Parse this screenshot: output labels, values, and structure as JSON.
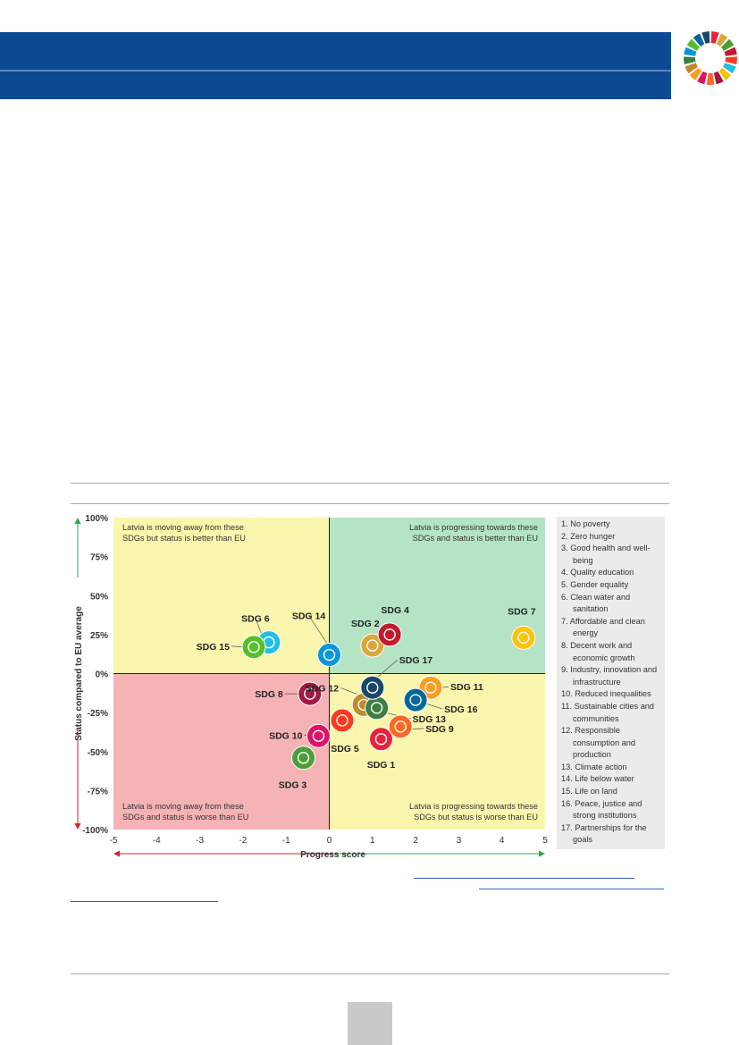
{
  "page": {
    "brand_colors": {
      "header_band": "#0b4a93",
      "rule": "#a9a9a9",
      "page_box": "#c9c9c9"
    }
  },
  "chart_data": {
    "type": "scatter",
    "xlabel": "Progress score",
    "ylabel": "Status compared to EU average",
    "xlim": [
      -5,
      5
    ],
    "ylim": [
      -100,
      100
    ],
    "xticks": [
      "-5",
      "-4",
      "-3",
      "-2",
      "-1",
      "0",
      "1",
      "2",
      "3",
      "4",
      "5"
    ],
    "yticks": [
      "100%",
      "75%",
      "50%",
      "25%",
      "0%",
      "-25%",
      "-50%",
      "-75%",
      "-100%"
    ],
    "quadrants": {
      "top_left": {
        "line1": "Latvia is moving away from these",
        "line2": "SDGs but status is better than EU",
        "color": "#fbf6ad"
      },
      "top_right": {
        "line1": "Latvia is progressing towards these",
        "line2": "SDGs and status is better than EU",
        "color": "#b5e4c5"
      },
      "bottom_left": {
        "line1": "Latvia is moving away from these",
        "line2": "SDGs and status is worse than EU",
        "color": "#f6b3b6"
      },
      "bottom_right": {
        "line1": "Latvia is progressing towards these",
        "line2": "SDGs but status is worse than EU",
        "color": "#fbf6ad"
      }
    },
    "points": [
      {
        "label": "SDG 1",
        "x": 1.2,
        "y": -42,
        "color": "#e5243b",
        "icon": "family-icon"
      },
      {
        "label": "SDG 2",
        "x": 1.0,
        "y": 18,
        "color": "#dda63a",
        "icon": "bowl-icon"
      },
      {
        "label": "SDG 3",
        "x": -0.6,
        "y": -54,
        "color": "#4c9f38",
        "icon": "heartbeat-icon"
      },
      {
        "label": "SDG 4",
        "x": 1.4,
        "y": 25,
        "color": "#c5192d",
        "icon": "book-icon"
      },
      {
        "label": "SDG 5",
        "x": 0.3,
        "y": -30,
        "color": "#ff3a21",
        "icon": "gender-icon"
      },
      {
        "label": "SDG 6",
        "x": -1.4,
        "y": 20,
        "color": "#26bde2",
        "icon": "water-glass-icon"
      },
      {
        "label": "SDG 7",
        "x": 4.5,
        "y": 23,
        "color": "#fcc30b",
        "icon": "sun-icon"
      },
      {
        "label": "SDG 8",
        "x": -0.45,
        "y": -13,
        "color": "#a21942",
        "icon": "growth-chart-icon"
      },
      {
        "label": "SDG 9",
        "x": 1.65,
        "y": -34,
        "color": "#fd6925",
        "icon": "cubes-icon"
      },
      {
        "label": "SDG 10",
        "x": -0.25,
        "y": -40,
        "color": "#dd1367",
        "icon": "equality-icon"
      },
      {
        "label": "SDG 11",
        "x": 2.35,
        "y": -9,
        "color": "#fd9d24",
        "icon": "city-icon"
      },
      {
        "label": "SDG 12",
        "x": 0.8,
        "y": -20,
        "color": "#bf8b2e",
        "icon": "infinity-icon"
      },
      {
        "label": "SDG 13",
        "x": 1.1,
        "y": -22,
        "color": "#3f7e44",
        "icon": "eye-globe-icon"
      },
      {
        "label": "SDG 14",
        "x": 0.0,
        "y": 12,
        "color": "#0a97d9",
        "icon": "fish-icon"
      },
      {
        "label": "SDG 15",
        "x": -1.75,
        "y": 17,
        "color": "#56c02b",
        "icon": "tree-icon"
      },
      {
        "label": "SDG 16",
        "x": 2.0,
        "y": -17,
        "color": "#00689d",
        "icon": "dove-icon"
      },
      {
        "label": "SDG 17",
        "x": 1.0,
        "y": -9,
        "color": "#19486a",
        "icon": "rings-icon"
      }
    ],
    "legend": [
      "1. No poverty",
      "2. Zero hunger",
      "3. Good health and well-",
      "being",
      "4. Quality education",
      "5. Gender equality",
      "6. Clean water and",
      "sanitation",
      "7. Affordable and clean",
      "energy",
      "8. Decent work and",
      "economic growth",
      "9. Industry, innovation and",
      "infrastructure",
      "10. Reduced inequalities",
      "11. Sustainable cities and",
      "communities",
      "12. Responsible",
      "consumption and",
      "production",
      "13. Climate action",
      "14. Life below water",
      "15. Life on land",
      "16. Peace, justice and",
      "strong institutions",
      "17. Partnerships for the",
      "goals"
    ]
  }
}
